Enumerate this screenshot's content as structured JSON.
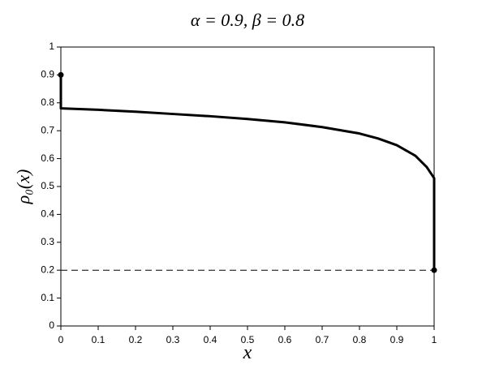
{
  "chart_data": {
    "type": "line",
    "title": "α = 0.9,  β = 0.8",
    "x_label": "x",
    "y_label": "ρ₀(x)",
    "series": [
      {
        "color": "#000000",
        "x": [
          0,
          0,
          0.1,
          0.2,
          0.3,
          0.4,
          0.5,
          0.6,
          0.7,
          0.8,
          0.85,
          0.9,
          0.95,
          0.98,
          1,
          1
        ],
        "values": [
          0.9,
          0.78,
          0.775,
          0.768,
          0.76,
          0.752,
          0.742,
          0.73,
          0.713,
          0.69,
          0.672,
          0.648,
          0.61,
          0.57,
          0.53,
          0.2
        ]
      }
    ],
    "markers": {
      "x": [
        0,
        1
      ],
      "values": [
        0.9,
        0.2
      ]
    },
    "hline": 0.2,
    "xlim": [
      0,
      1
    ],
    "ylim": [
      0,
      1
    ],
    "xticks": [
      0,
      0.1,
      0.2,
      0.3,
      0.4,
      0.5,
      0.6,
      0.7,
      0.8,
      0.9,
      1
    ],
    "yticks": [
      0,
      0.1,
      0.2,
      0.3,
      0.4,
      0.5,
      0.6,
      0.7,
      0.8,
      0.9,
      1
    ]
  }
}
